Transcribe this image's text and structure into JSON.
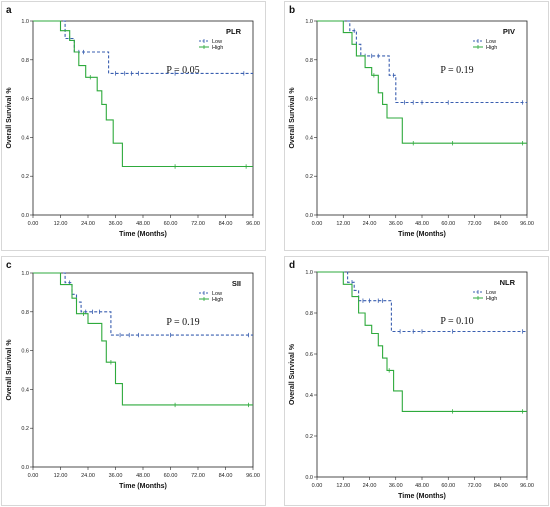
{
  "figure": {
    "panels": [
      {
        "letter": "a",
        "title": "PLR",
        "p_value": "P = 0.05",
        "legend_position": "top-right",
        "chart_data": {
          "type": "line",
          "xlabel": "Time (Months)",
          "ylabel": "Overall Survival %",
          "xlim": [
            0,
            96
          ],
          "ylim": [
            0,
            1.0
          ],
          "x_ticks": [
            "0.00",
            "12.00",
            "24.00",
            "36.00",
            "48.00",
            "60.00",
            "72.00",
            "84.00",
            "96.00"
          ],
          "y_ticks": [
            "0.0",
            "0.2",
            "0.4",
            "0.6",
            "0.8",
            "1.0"
          ],
          "series": [
            {
              "name": "Low",
              "color": "#3a5fb0",
              "style": "dashed",
              "steps": [
                [
                  0,
                  1.0
                ],
                [
                  14,
                  1.0
                ],
                [
                  14,
                  0.91
                ],
                [
                  18,
                  0.91
                ],
                [
                  18,
                  0.84
                ],
                [
                  33,
                  0.84
                ],
                [
                  33,
                  0.73
                ],
                [
                  96,
                  0.73
                ]
              ],
              "censored": [
                [
                  16,
                  0.91
                ],
                [
                  20,
                  0.84
                ],
                [
                  22,
                  0.84
                ],
                [
                  36,
                  0.73
                ],
                [
                  40,
                  0.73
                ],
                [
                  43,
                  0.73
                ],
                [
                  46,
                  0.73
                ],
                [
                  62,
                  0.73
                ],
                [
                  92,
                  0.73
                ]
              ]
            },
            {
              "name": "High",
              "color": "#2eaa3c",
              "style": "solid",
              "steps": [
                [
                  0,
                  1.0
                ],
                [
                  12,
                  1.0
                ],
                [
                  12,
                  0.95
                ],
                [
                  16,
                  0.95
                ],
                [
                  16,
                  0.9
                ],
                [
                  18,
                  0.9
                ],
                [
                  18,
                  0.84
                ],
                [
                  20,
                  0.84
                ],
                [
                  20,
                  0.77
                ],
                [
                  23,
                  0.77
                ],
                [
                  23,
                  0.71
                ],
                [
                  28,
                  0.71
                ],
                [
                  28,
                  0.64
                ],
                [
                  30,
                  0.64
                ],
                [
                  30,
                  0.57
                ],
                [
                  32,
                  0.57
                ],
                [
                  32,
                  0.49
                ],
                [
                  35,
                  0.49
                ],
                [
                  35,
                  0.37
                ],
                [
                  39,
                  0.37
                ],
                [
                  39,
                  0.25
                ],
                [
                  96,
                  0.25
                ]
              ],
              "censored": [
                [
                  25,
                  0.71
                ],
                [
                  62,
                  0.25
                ],
                [
                  93,
                  0.25
                ]
              ]
            }
          ]
        }
      },
      {
        "letter": "b",
        "title": "PIV",
        "p_value": "P = 0.19",
        "legend_position": "top-right",
        "chart_data": {
          "type": "line",
          "xlabel": "Time (Months)",
          "ylabel": "Overall Survival %",
          "xlim": [
            0,
            96
          ],
          "ylim": [
            0,
            1.0
          ],
          "x_ticks": [
            "0.00",
            "12.00",
            "24.00",
            "36.00",
            "48.00",
            "60.00",
            "72.00",
            "84.00",
            "96.00"
          ],
          "y_ticks": [
            "0.0",
            "0.2",
            "0.4",
            "0.6",
            "0.8",
            "1.0"
          ],
          "series": [
            {
              "name": "Low",
              "color": "#3a5fb0",
              "style": "dashed",
              "steps": [
                [
                  0,
                  1.0
                ],
                [
                  15,
                  1.0
                ],
                [
                  15,
                  0.95
                ],
                [
                  18,
                  0.95
                ],
                [
                  18,
                  0.88
                ],
                [
                  20,
                  0.88
                ],
                [
                  20,
                  0.82
                ],
                [
                  33,
                  0.82
                ],
                [
                  33,
                  0.72
                ],
                [
                  36,
                  0.72
                ],
                [
                  36,
                  0.58
                ],
                [
                  96,
                  0.58
                ]
              ],
              "censored": [
                [
                  17,
                  0.95
                ],
                [
                  22,
                  0.82
                ],
                [
                  25,
                  0.82
                ],
                [
                  28,
                  0.82
                ],
                [
                  35,
                  0.72
                ],
                [
                  40,
                  0.58
                ],
                [
                  44,
                  0.58
                ],
                [
                  48,
                  0.58
                ],
                [
                  60,
                  0.58
                ],
                [
                  94,
                  0.58
                ]
              ]
            },
            {
              "name": "High",
              "color": "#2eaa3c",
              "style": "solid",
              "steps": [
                [
                  0,
                  1.0
                ],
                [
                  12,
                  1.0
                ],
                [
                  12,
                  0.94
                ],
                [
                  16,
                  0.94
                ],
                [
                  16,
                  0.88
                ],
                [
                  18,
                  0.88
                ],
                [
                  18,
                  0.82
                ],
                [
                  22,
                  0.82
                ],
                [
                  22,
                  0.76
                ],
                [
                  25,
                  0.76
                ],
                [
                  25,
                  0.72
                ],
                [
                  28,
                  0.72
                ],
                [
                  28,
                  0.63
                ],
                [
                  30,
                  0.63
                ],
                [
                  30,
                  0.57
                ],
                [
                  32,
                  0.57
                ],
                [
                  32,
                  0.5
                ],
                [
                  39,
                  0.5
                ],
                [
                  39,
                  0.37
                ],
                [
                  96,
                  0.37
                ]
              ],
              "censored": [
                [
                  26,
                  0.72
                ],
                [
                  44,
                  0.37
                ],
                [
                  62,
                  0.37
                ],
                [
                  94,
                  0.37
                ]
              ]
            }
          ]
        }
      },
      {
        "letter": "c",
        "title": "SII",
        "p_value": "P = 0.19",
        "legend_position": "top-right",
        "chart_data": {
          "type": "line",
          "xlabel": "Time (Months)",
          "ylabel": "Overall Survival %",
          "xlim": [
            0,
            96
          ],
          "ylim": [
            0,
            1.0
          ],
          "x_ticks": [
            "0.00",
            "12.00",
            "24.00",
            "36.00",
            "48.00",
            "60.00",
            "72.00",
            "84.00",
            "96.00"
          ],
          "y_ticks": [
            "0.0",
            "0.2",
            "0.4",
            "0.6",
            "0.8",
            "1.0"
          ],
          "series": [
            {
              "name": "Low",
              "color": "#3a5fb0",
              "style": "dashed",
              "steps": [
                [
                  0,
                  1.0
                ],
                [
                  14,
                  1.0
                ],
                [
                  14,
                  0.95
                ],
                [
                  17,
                  0.95
                ],
                [
                  17,
                  0.89
                ],
                [
                  19,
                  0.89
                ],
                [
                  19,
                  0.85
                ],
                [
                  21,
                  0.85
                ],
                [
                  21,
                  0.8
                ],
                [
                  34,
                  0.8
                ],
                [
                  34,
                  0.68
                ],
                [
                  96,
                  0.68
                ]
              ],
              "censored": [
                [
                  16,
                  0.95
                ],
                [
                  23,
                  0.8
                ],
                [
                  26,
                  0.8
                ],
                [
                  29,
                  0.8
                ],
                [
                  38,
                  0.68
                ],
                [
                  42,
                  0.68
                ],
                [
                  46,
                  0.68
                ],
                [
                  60,
                  0.68
                ],
                [
                  94,
                  0.68
                ]
              ]
            },
            {
              "name": "High",
              "color": "#2eaa3c",
              "style": "solid",
              "steps": [
                [
                  0,
                  1.0
                ],
                [
                  12,
                  1.0
                ],
                [
                  12,
                  0.94
                ],
                [
                  17,
                  0.94
                ],
                [
                  17,
                  0.87
                ],
                [
                  19,
                  0.87
                ],
                [
                  19,
                  0.79
                ],
                [
                  24,
                  0.79
                ],
                [
                  24,
                  0.74
                ],
                [
                  30,
                  0.74
                ],
                [
                  30,
                  0.65
                ],
                [
                  32,
                  0.65
                ],
                [
                  32,
                  0.54
                ],
                [
                  36,
                  0.54
                ],
                [
                  36,
                  0.43
                ],
                [
                  39,
                  0.43
                ],
                [
                  39,
                  0.32
                ],
                [
                  96,
                  0.32
                ]
              ],
              "censored": [
                [
                  22,
                  0.79
                ],
                [
                  34,
                  0.54
                ],
                [
                  62,
                  0.32
                ],
                [
                  94,
                  0.32
                ]
              ]
            }
          ]
        }
      },
      {
        "letter": "d",
        "title": "NLR",
        "p_value": "P = 0.10",
        "legend_position": "top-right",
        "chart_data": {
          "type": "line",
          "xlabel": "Time (Months)",
          "ylabel": "Overall Survival %",
          "xlim": [
            0,
            96
          ],
          "ylim": [
            0,
            1.0
          ],
          "x_ticks": [
            "0.00",
            "12.00",
            "24.00",
            "36.00",
            "48.00",
            "60.00",
            "72.00",
            "84.00",
            "96.00"
          ],
          "y_ticks": [
            "0.0",
            "0.2",
            "0.4",
            "0.6",
            "0.8",
            "1.0"
          ],
          "series": [
            {
              "name": "Low",
              "color": "#3a5fb0",
              "style": "dashed",
              "steps": [
                [
                  0,
                  1.0
                ],
                [
                  14,
                  1.0
                ],
                [
                  14,
                  0.95
                ],
                [
                  17,
                  0.95
                ],
                [
                  17,
                  0.91
                ],
                [
                  19,
                  0.91
                ],
                [
                  19,
                  0.86
                ],
                [
                  34,
                  0.86
                ],
                [
                  34,
                  0.71
                ],
                [
                  96,
                  0.71
                ]
              ],
              "censored": [
                [
                  16,
                  0.95
                ],
                [
                  21,
                  0.86
                ],
                [
                  24,
                  0.86
                ],
                [
                  28,
                  0.86
                ],
                [
                  30,
                  0.86
                ],
                [
                  38,
                  0.71
                ],
                [
                  44,
                  0.71
                ],
                [
                  48,
                  0.71
                ],
                [
                  62,
                  0.71
                ],
                [
                  94,
                  0.71
                ]
              ]
            },
            {
              "name": "High",
              "color": "#2eaa3c",
              "style": "solid",
              "steps": [
                [
                  0,
                  1.0
                ],
                [
                  12,
                  1.0
                ],
                [
                  12,
                  0.94
                ],
                [
                  16,
                  0.94
                ],
                [
                  16,
                  0.88
                ],
                [
                  19,
                  0.88
                ],
                [
                  19,
                  0.8
                ],
                [
                  22,
                  0.8
                ],
                [
                  22,
                  0.74
                ],
                [
                  25,
                  0.74
                ],
                [
                  25,
                  0.7
                ],
                [
                  28,
                  0.7
                ],
                [
                  28,
                  0.64
                ],
                [
                  30,
                  0.64
                ],
                [
                  30,
                  0.58
                ],
                [
                  32,
                  0.58
                ],
                [
                  32,
                  0.52
                ],
                [
                  35,
                  0.52
                ],
                [
                  35,
                  0.42
                ],
                [
                  39,
                  0.42
                ],
                [
                  39,
                  0.32
                ],
                [
                  96,
                  0.32
                ]
              ],
              "censored": [
                [
                  33,
                  0.52
                ],
                [
                  62,
                  0.32
                ],
                [
                  94,
                  0.32
                ]
              ]
            }
          ]
        }
      }
    ]
  }
}
